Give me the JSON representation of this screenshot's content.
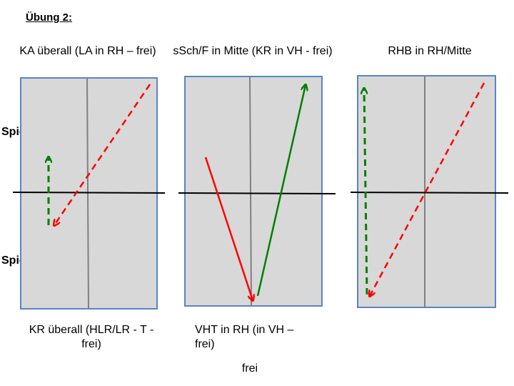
{
  "title": "Übung 2:",
  "side_labels": {
    "player_b": "Spieler B",
    "player_a": "Spieler A"
  },
  "panels": [
    {
      "top_caption": "KA überall (LA in RH – frei)",
      "bottom_caption": "KR überall (HLR/LR - T - frei)"
    },
    {
      "top_caption": "sSch/F in Mitte (KR in VH - frei)",
      "bottom_caption": "VHT in RH (in VH – frei)"
    },
    {
      "top_caption": "RHB in RH/Mitte",
      "bottom_caption": ""
    }
  ],
  "footer_text": "frei",
  "colors": {
    "table_fill": "#d8d8d8",
    "table_border": "#5b84c4",
    "center_line": "#808080",
    "net": "#000000",
    "red_arrow": "#ff0000",
    "green_arrow": "#008000"
  },
  "arrows": [
    {
      "panel": 1,
      "color": "red",
      "style": "dashed"
    },
    {
      "panel": 1,
      "color": "green",
      "style": "dashed"
    },
    {
      "panel": 2,
      "color": "red",
      "style": "solid"
    },
    {
      "panel": 2,
      "color": "green",
      "style": "solid"
    },
    {
      "panel": 3,
      "color": "green",
      "style": "dashed"
    },
    {
      "panel": 3,
      "color": "red",
      "style": "dashed"
    }
  ]
}
